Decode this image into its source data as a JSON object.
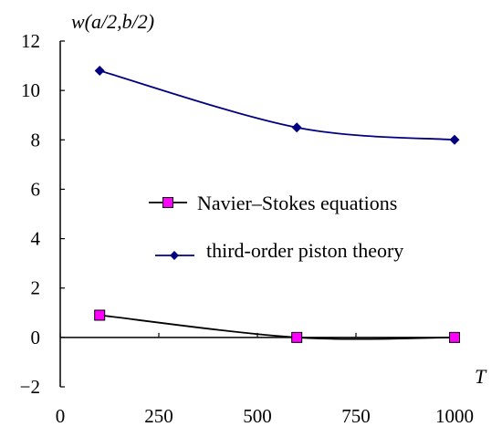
{
  "chart_data": {
    "type": "line",
    "title": "",
    "xlabel": "T",
    "ylabel": "w(a/2,b/2)",
    "x": [
      100,
      600,
      1000
    ],
    "xlim": [
      0,
      1000
    ],
    "ylim": [
      -2,
      12
    ],
    "xticks": [
      "0",
      "250",
      "500",
      "750",
      "1000"
    ],
    "yticks": [
      "12",
      "10",
      "8",
      "6",
      "4",
      "2",
      "0",
      "−2"
    ],
    "grid": false,
    "legend_position": "center-right",
    "series": [
      {
        "name": "Navier–Stokes equations",
        "values": [
          0.9,
          0.0,
          0.0
        ],
        "color": "#000000",
        "marker": "square",
        "marker_color": "#ff00ff"
      },
      {
        "name": "third-order piston theory",
        "values": [
          10.8,
          8.5,
          8.0
        ],
        "color": "#000080",
        "marker": "diamond",
        "marker_color": "#000080"
      }
    ]
  }
}
